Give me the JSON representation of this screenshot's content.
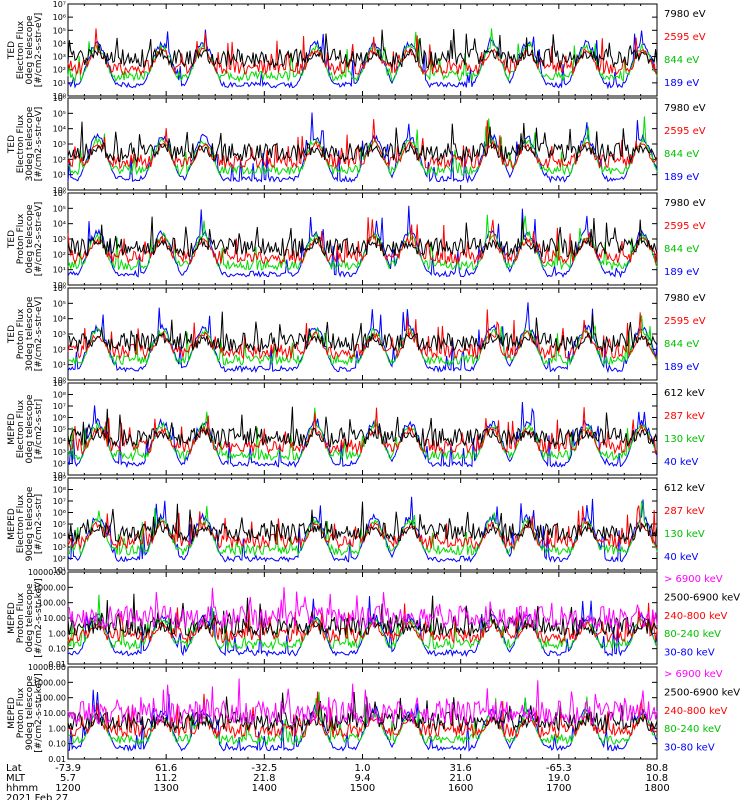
{
  "chart_data": {
    "type": "line",
    "date_label": "2021 Feb 27",
    "time_axis": {
      "row_labels": [
        "Lat",
        "MLT",
        "hhmm"
      ],
      "ticks": [
        {
          "lat": "-73.9",
          "mlt": "5.7",
          "hhmm": "1200"
        },
        {
          "lat": "61.6",
          "mlt": "11.2",
          "hhmm": "1300"
        },
        {
          "lat": "-32.5",
          "mlt": "21.8",
          "hhmm": "1400"
        },
        {
          "lat": "1.0",
          "mlt": "9.4",
          "hhmm": "1500"
        },
        {
          "lat": "31.6",
          "mlt": "21.0",
          "hhmm": "1600"
        },
        {
          "lat": "-65.3",
          "mlt": "19.0",
          "hhmm": "1700"
        },
        {
          "lat": "80.8",
          "mlt": "10.8",
          "hhmm": "1800"
        }
      ],
      "xlim": [
        "1200",
        "1800"
      ]
    },
    "panels": [
      {
        "ylabel": [
          "TED",
          "Electron Flux",
          "0deg telescope",
          "[#/cm2-s-str-eV]"
        ],
        "scale": "log",
        "ylim": [
          1,
          10000000
        ],
        "yticks": [
          "10⁰",
          "10¹",
          "10²",
          "10³",
          "10⁴",
          "10⁵",
          "10⁶",
          "10⁷"
        ],
        "series": [
          {
            "name": "7980 eV",
            "color": "#000000"
          },
          {
            "name": "2595 eV",
            "color": "#ff0000"
          },
          {
            "name": "844 eV",
            "color": "#00dd00"
          },
          {
            "name": "189 eV",
            "color": "#0000ff"
          }
        ]
      },
      {
        "ylabel": [
          "TED",
          "Electron Flux",
          "30deg telescope",
          "[#/cm2-s-str-eV]"
        ],
        "scale": "log",
        "ylim": [
          1,
          1000000
        ],
        "yticks": [
          "10⁰",
          "10¹",
          "10²",
          "10³",
          "10⁴",
          "10⁵",
          "10⁶"
        ],
        "series": [
          {
            "name": "7980 eV",
            "color": "#000000"
          },
          {
            "name": "2595 eV",
            "color": "#ff0000"
          },
          {
            "name": "844 eV",
            "color": "#00dd00"
          },
          {
            "name": "189 eV",
            "color": "#0000ff"
          }
        ]
      },
      {
        "ylabel": [
          "TED",
          "Proton Flux",
          "0deg telescope",
          "[#/cm2-s-str-eV]"
        ],
        "scale": "log",
        "ylim": [
          1,
          1000000
        ],
        "yticks": [
          "10⁰",
          "10¹",
          "10²",
          "10³",
          "10⁴",
          "10⁵",
          "10⁶"
        ],
        "series": [
          {
            "name": "7980 eV",
            "color": "#000000"
          },
          {
            "name": "2595 eV",
            "color": "#ff0000"
          },
          {
            "name": "844 eV",
            "color": "#00dd00"
          },
          {
            "name": "189 eV",
            "color": "#0000ff"
          }
        ]
      },
      {
        "ylabel": [
          "TED",
          "Proton Flux",
          "30deg telescope",
          "[#/cm2-s-str-eV]"
        ],
        "scale": "log",
        "ylim": [
          1,
          1000000
        ],
        "yticks": [
          "10⁰",
          "10¹",
          "10²",
          "10³",
          "10⁴",
          "10⁵",
          "10⁶"
        ],
        "series": [
          {
            "name": "7980 eV",
            "color": "#000000"
          },
          {
            "name": "2595 eV",
            "color": "#ff0000"
          },
          {
            "name": "844 eV",
            "color": "#00dd00"
          },
          {
            "name": "189 eV",
            "color": "#0000ff"
          }
        ]
      },
      {
        "ylabel": [
          "MEPED",
          "Electron Flux",
          "0deg telescope",
          "[#/cm2-s-str]"
        ],
        "scale": "log",
        "ylim": [
          10,
          1000000000
        ],
        "yticks": [
          "10¹",
          "10²",
          "10³",
          "10⁴",
          "10⁵",
          "10⁶",
          "10⁷",
          "10⁸",
          "10⁹"
        ],
        "series": [
          {
            "name": "612 keV",
            "color": "#000000"
          },
          {
            "name": "287 keV",
            "color": "#ff0000"
          },
          {
            "name": "130 keV",
            "color": "#00dd00"
          },
          {
            "name": "40 keV",
            "color": "#0000ff"
          }
        ]
      },
      {
        "ylabel": [
          "MEPED",
          "Electron Flux",
          "90deg telescope",
          "[#/cm2-s-str]"
        ],
        "scale": "log",
        "ylim": [
          10,
          1000000000
        ],
        "yticks": [
          "10¹",
          "10²",
          "10³",
          "10⁴",
          "10⁵",
          "10⁶",
          "10⁷",
          "10⁸",
          "10⁹"
        ],
        "series": [
          {
            "name": "612 keV",
            "color": "#000000"
          },
          {
            "name": "287 keV",
            "color": "#ff0000"
          },
          {
            "name": "130 keV",
            "color": "#00dd00"
          },
          {
            "name": "40 keV",
            "color": "#0000ff"
          }
        ]
      },
      {
        "ylabel": [
          "MEPED",
          "Proton Flux",
          "0deg telescope",
          "[#/cm2-s-str-keV]"
        ],
        "scale": "log",
        "ylim": [
          0.01,
          10000
        ],
        "yticks": [
          "10000.00",
          "1000.00",
          "100.00",
          "10.00",
          "1.00",
          "0.10",
          "0.01"
        ],
        "series": [
          {
            "name": "> 6900 keV",
            "color": "#ff00ff"
          },
          {
            "name": "2500-6900 keV",
            "color": "#000000"
          },
          {
            "name": "240-800 keV",
            "color": "#ff0000"
          },
          {
            "name": "80-240 keV",
            "color": "#00dd00"
          },
          {
            "name": "30-80 keV",
            "color": "#0000ff"
          }
        ]
      },
      {
        "ylabel": [
          "MEPED",
          "Proton Flux",
          "90deg telescope",
          "[#/cm2-s-str-keV]"
        ],
        "scale": "log",
        "ylim": [
          0.01,
          10000
        ],
        "yticks": [
          "10000.00",
          "1000.00",
          "100.00",
          "10.00",
          "1.00",
          "0.10",
          "0.01"
        ],
        "series": [
          {
            "name": "> 6900 keV",
            "color": "#ff00ff"
          },
          {
            "name": "2500-6900 keV",
            "color": "#000000"
          },
          {
            "name": "240-800 keV",
            "color": "#ff0000"
          },
          {
            "name": "80-240 keV",
            "color": "#00dd00"
          },
          {
            "name": "30-80 keV",
            "color": "#0000ff"
          }
        ]
      }
    ]
  }
}
